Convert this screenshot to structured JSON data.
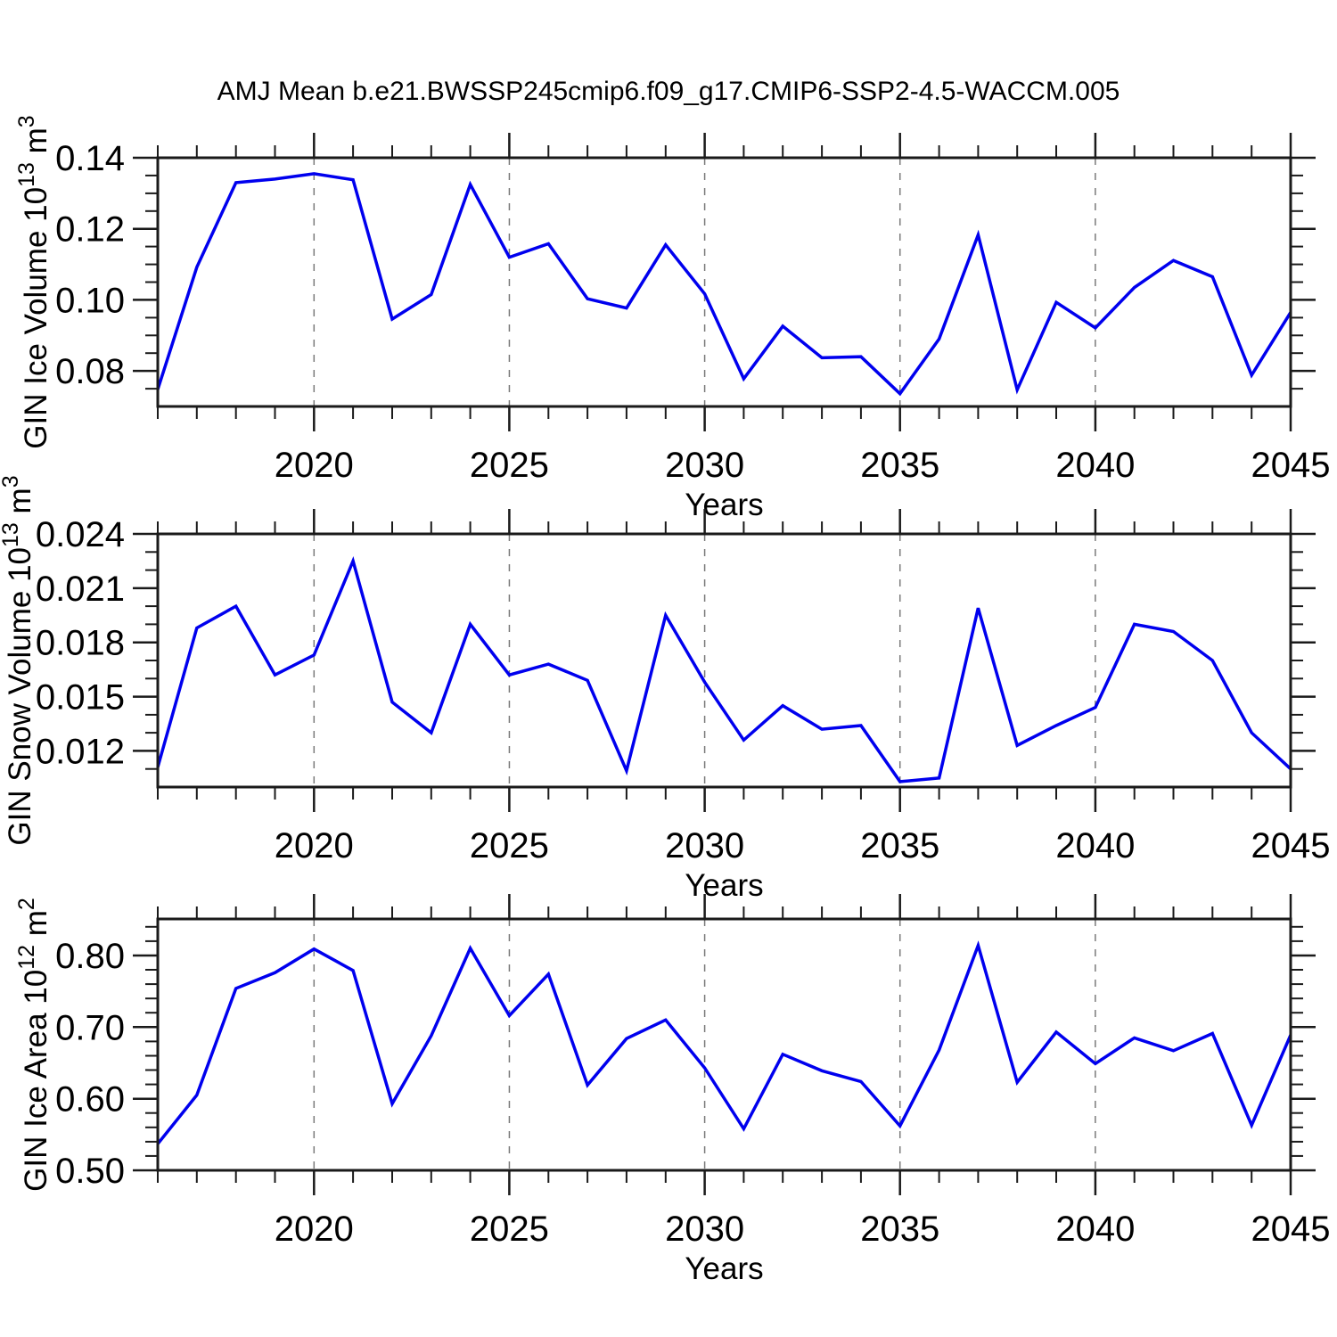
{
  "figure": {
    "title": "AMJ Mean b.e21.BWSSP245cmip6.f09_g17.CMIP6-SSP2-4.5-WACCM.005",
    "background_color": "#ffffff",
    "line_color": "#0000ee",
    "axis_color": "#1a1a1a",
    "grid_color": "#7a7a7a",
    "text_color": "#000000"
  },
  "chart_data": [
    {
      "type": "line",
      "name": "gin-ice-volume",
      "ylabel": "GIN Ice Volume 10¹³ m³",
      "ylabel_segments": [
        {
          "text": "GIN Ice Volume 10",
          "sup": false
        },
        {
          "text": "13",
          "sup": true
        },
        {
          "text": " m",
          "sup": false
        },
        {
          "text": "3",
          "sup": true
        }
      ],
      "xlabel": "Years",
      "x": [
        2016,
        2017,
        2018,
        2019,
        2020,
        2021,
        2022,
        2023,
        2024,
        2025,
        2026,
        2027,
        2028,
        2029,
        2030,
        2031,
        2032,
        2033,
        2034,
        2035,
        2036,
        2037,
        2038,
        2039,
        2040,
        2041,
        2042,
        2043,
        2044,
        2045
      ],
      "values": [
        0.0748,
        0.1092,
        0.133,
        0.134,
        0.1355,
        0.1338,
        0.0946,
        0.1015,
        0.1325,
        0.112,
        0.1158,
        0.1003,
        0.0977,
        0.1155,
        0.1017,
        0.0778,
        0.0926,
        0.0837,
        0.084,
        0.0736,
        0.089,
        0.1183,
        0.0747,
        0.0993,
        0.0921,
        0.1035,
        0.1111,
        0.1065,
        0.0788,
        0.0965
      ],
      "xlim": [
        2016,
        2045
      ],
      "ylim": [
        0.07,
        0.14
      ],
      "yticks": [
        0.08,
        0.1,
        0.12,
        0.14
      ],
      "ytick_labels": [
        "0.08",
        "0.10",
        "0.12",
        "0.14"
      ],
      "y_minor_step": 0.005,
      "xticks": [
        2020,
        2025,
        2030,
        2035,
        2040,
        2045
      ],
      "xtick_labels": [
        "2020",
        "2025",
        "2030",
        "2035",
        "2040",
        "2045"
      ],
      "x_minor_step": 1,
      "grid_x": [
        2020,
        2025,
        2030,
        2035,
        2040
      ],
      "grid_style": "dashed"
    },
    {
      "type": "line",
      "name": "gin-snow-volume",
      "ylabel": "GIN Snow Volume 10¹³ m³",
      "ylabel_segments": [
        {
          "text": "GIN Snow Volume 10",
          "sup": false
        },
        {
          "text": "13",
          "sup": true
        },
        {
          "text": " m",
          "sup": false
        },
        {
          "text": "3",
          "sup": true
        }
      ],
      "xlabel": "Years",
      "x": [
        2016,
        2017,
        2018,
        2019,
        2020,
        2021,
        2022,
        2023,
        2024,
        2025,
        2026,
        2027,
        2028,
        2029,
        2030,
        2031,
        2032,
        2033,
        2034,
        2035,
        2036,
        2037,
        2038,
        2039,
        2040,
        2041,
        2042,
        2043,
        2044,
        2045
      ],
      "values": [
        0.0111,
        0.0188,
        0.02,
        0.0162,
        0.0173,
        0.0225,
        0.0147,
        0.013,
        0.019,
        0.0162,
        0.0168,
        0.0159,
        0.0109,
        0.0195,
        0.0158,
        0.0126,
        0.0145,
        0.0132,
        0.0134,
        0.0103,
        0.0105,
        0.0199,
        0.0123,
        0.0134,
        0.0144,
        0.019,
        0.0186,
        0.017,
        0.013,
        0.011
      ],
      "xlim": [
        2016,
        2045
      ],
      "ylim": [
        0.01,
        0.024
      ],
      "yticks": [
        0.012,
        0.015,
        0.018,
        0.021,
        0.024
      ],
      "ytick_labels": [
        "0.012",
        "0.015",
        "0.018",
        "0.021",
        "0.024"
      ],
      "y_minor_step": 0.001,
      "xticks": [
        2020,
        2025,
        2030,
        2035,
        2040,
        2045
      ],
      "xtick_labels": [
        "2020",
        "2025",
        "2030",
        "2035",
        "2040",
        "2045"
      ],
      "x_minor_step": 1,
      "grid_x": [
        2020,
        2025,
        2030,
        2035,
        2040
      ],
      "grid_style": "dashed"
    },
    {
      "type": "line",
      "name": "gin-ice-area",
      "ylabel": "GIN Ice Area 10¹² m²",
      "ylabel_segments": [
        {
          "text": "GIN Ice Area 10",
          "sup": false
        },
        {
          "text": "12",
          "sup": true
        },
        {
          "text": " m",
          "sup": false
        },
        {
          "text": "2",
          "sup": true
        }
      ],
      "xlabel": "Years",
      "x": [
        2016,
        2017,
        2018,
        2019,
        2020,
        2021,
        2022,
        2023,
        2024,
        2025,
        2026,
        2027,
        2028,
        2029,
        2030,
        2031,
        2032,
        2033,
        2034,
        2035,
        2036,
        2037,
        2038,
        2039,
        2040,
        2041,
        2042,
        2043,
        2044,
        2045
      ],
      "values": [
        0.537,
        0.605,
        0.754,
        0.776,
        0.809,
        0.779,
        0.593,
        0.688,
        0.81,
        0.716,
        0.774,
        0.619,
        0.684,
        0.71,
        0.643,
        0.558,
        0.662,
        0.639,
        0.624,
        0.562,
        0.668,
        0.814,
        0.623,
        0.693,
        0.649,
        0.685,
        0.667,
        0.691,
        0.563,
        0.689
      ],
      "xlim": [
        2016,
        2045
      ],
      "ylim": [
        0.5,
        0.851
      ],
      "yticks": [
        0.5,
        0.6,
        0.7,
        0.8
      ],
      "ytick_labels": [
        "0.50",
        "0.60",
        "0.70",
        "0.80"
      ],
      "y_minor_step": 0.02,
      "xticks": [
        2020,
        2025,
        2030,
        2035,
        2040,
        2045
      ],
      "xtick_labels": [
        "2020",
        "2025",
        "2030",
        "2035",
        "2040",
        "2045"
      ],
      "x_minor_step": 1,
      "grid_x": [
        2020,
        2025,
        2030,
        2035,
        2040
      ],
      "grid_style": "dashed"
    }
  ]
}
